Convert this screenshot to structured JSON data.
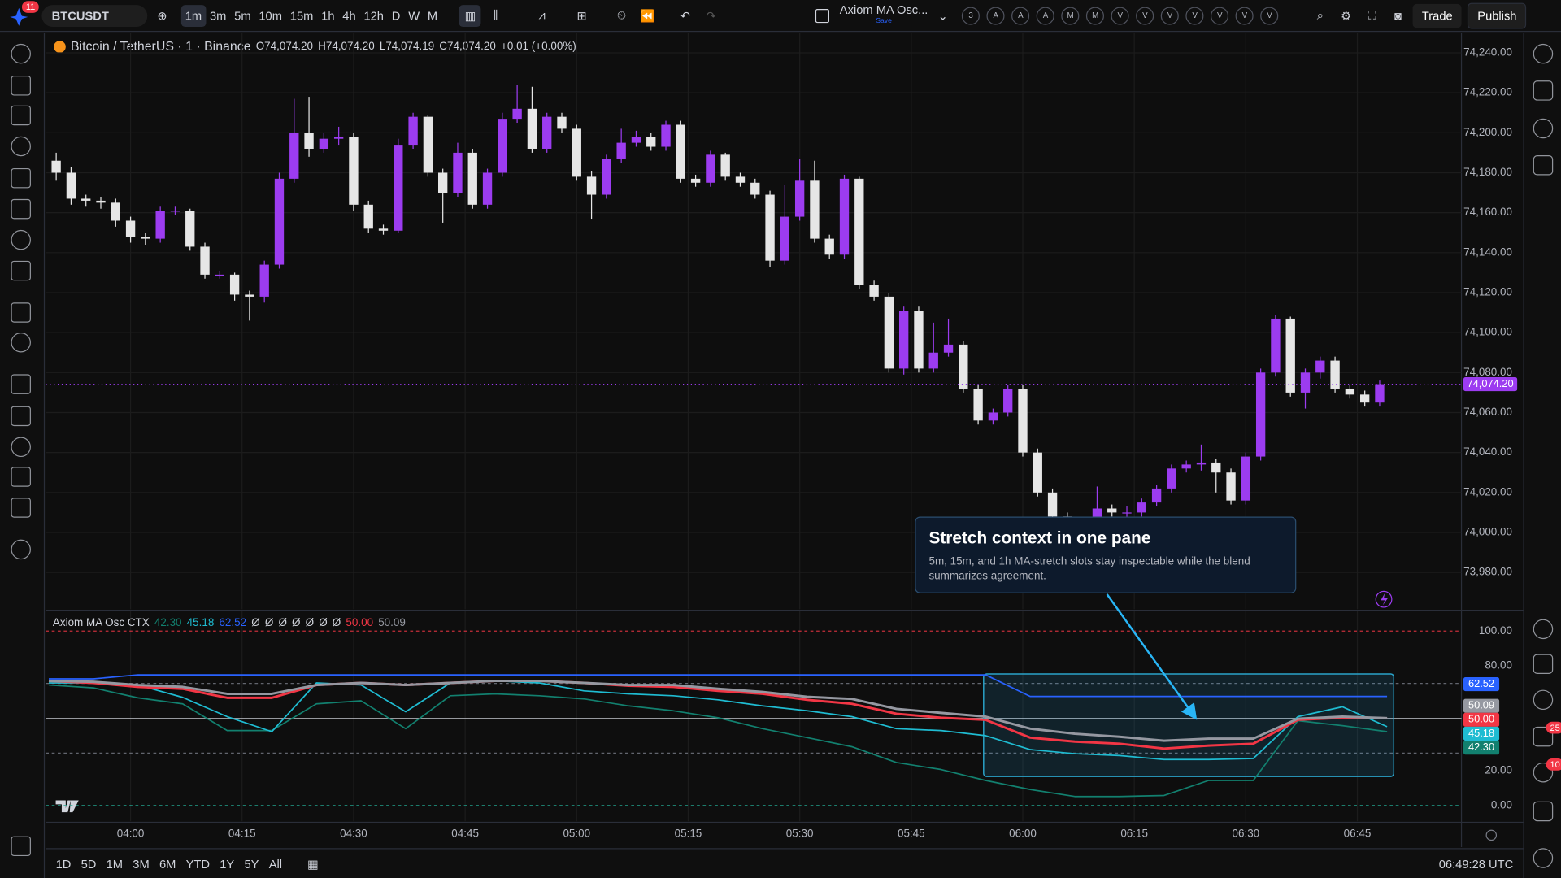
{
  "toolbar": {
    "notifications": "11",
    "symbol": "BTCUSDT",
    "intervals": [
      "1m",
      "3m",
      "5m",
      "10m",
      "15m",
      "1h",
      "4h",
      "12h",
      "D",
      "W",
      "M"
    ],
    "indicator_name": "Axiom MA Osc...",
    "save": "Save",
    "slots": [
      "3",
      "A",
      "A",
      "A",
      "M",
      "M",
      "V",
      "V",
      "V",
      "V",
      "V",
      "V",
      "V"
    ],
    "trade": "Trade",
    "publish": "Publish"
  },
  "legend": {
    "symbol": "Bitcoin / TetherUS · 1 · Binance",
    "open": "O74,074.20",
    "high": "H74,074.20",
    "low": "L74,074.19",
    "close": "C74,074.20",
    "change": "+0.01 (+0.00%)"
  },
  "right_badges": [
    "25",
    "10"
  ],
  "tooltip": {
    "title": "Stretch context in one pane",
    "text": "5m, 15m, and 1h MA-stretch slots stay inspectable while the blend summarizes agreement."
  },
  "range_buttons": [
    "1D",
    "5D",
    "1M",
    "3M",
    "6M",
    "YTD",
    "1Y",
    "5Y",
    "All"
  ],
  "clock": "06:49:28 UTC",
  "chart_data": [
    {
      "type": "candlestick",
      "up_color": "#9c3cf0",
      "down_color": "#e6e6e6",
      "grid": true,
      "xlim": [
        228.6,
        419
      ],
      "xticks": [
        {
          "value": 240,
          "label": "04:00"
        },
        {
          "value": 255,
          "label": "04:15"
        },
        {
          "value": 270,
          "label": "04:30"
        },
        {
          "value": 285,
          "label": "04:45"
        },
        {
          "value": 300,
          "label": "05:00"
        },
        {
          "value": 315,
          "label": "05:15"
        },
        {
          "value": 330,
          "label": "05:30"
        },
        {
          "value": 345,
          "label": "05:45"
        },
        {
          "value": 360,
          "label": "06:00"
        },
        {
          "value": 375,
          "label": "06:15"
        },
        {
          "value": 390,
          "label": "06:30"
        },
        {
          "value": 405,
          "label": "06:45"
        }
      ],
      "ylim": [
        73961.6,
        74250
      ],
      "yticks": [
        {
          "value": 74240,
          "label": "74,240.00"
        },
        {
          "value": 74220,
          "label": "74,220.00"
        },
        {
          "value": 74200,
          "label": "74,200.00"
        },
        {
          "value": 74180,
          "label": "74,180.00"
        },
        {
          "value": 74160,
          "label": "74,160.00"
        },
        {
          "value": 74140,
          "label": "74,140.00"
        },
        {
          "value": 74120,
          "label": "74,120.00"
        },
        {
          "value": 74100,
          "label": "74,100.00"
        },
        {
          "value": 74080,
          "label": "74,080.00"
        },
        {
          "value": 74060,
          "label": "74,060.00"
        },
        {
          "value": 74040,
          "label": "74,040.00"
        },
        {
          "value": 74020,
          "label": "74,020.00"
        },
        {
          "value": 74000,
          "label": "74,000.00"
        },
        {
          "value": 73980,
          "label": "73,980.00"
        }
      ],
      "last_price": {
        "value": 74074.2,
        "label": "74,074.20"
      },
      "x": [
        230,
        232,
        234,
        236,
        238,
        240,
        242,
        244,
        246,
        248,
        250,
        252,
        254,
        256,
        258,
        260,
        262,
        264,
        266,
        268,
        270,
        272,
        274,
        276,
        278,
        280,
        282,
        284,
        286,
        288,
        290,
        292,
        294,
        296,
        298,
        300,
        302,
        304,
        306,
        308,
        310,
        312,
        314,
        316,
        318,
        320,
        322,
        324,
        326,
        328,
        330,
        332,
        334,
        336,
        338,
        340,
        342,
        344,
        346,
        348,
        350,
        352,
        354,
        356,
        358,
        360,
        362,
        364,
        366,
        368,
        370,
        372,
        374,
        376,
        378,
        380,
        382,
        384,
        386,
        388,
        390,
        392,
        394,
        396,
        398,
        400,
        402,
        404,
        406,
        408
      ],
      "open": [
        74186,
        74180,
        74167,
        74166,
        74165,
        74156,
        74148,
        74147,
        74161,
        74161,
        74143,
        74129,
        74129,
        74119,
        74118,
        74134,
        74177,
        74200,
        74192,
        74197,
        74198,
        74164,
        74152,
        74151,
        74194,
        74208,
        74180,
        74170,
        74190,
        74164,
        74180,
        74207,
        74212,
        74192,
        74208,
        74202,
        74178,
        74169,
        74187,
        74195,
        74198,
        74193,
        74204,
        74177,
        74175,
        74189,
        74178,
        74175,
        74169,
        74136,
        74158,
        74176,
        74147,
        74139,
        74177,
        74124,
        74118,
        74082,
        74111,
        74082,
        74090,
        74094,
        74072,
        74056,
        74060,
        74072,
        74040,
        74020,
        74008,
        74005,
        74004,
        74012,
        74010,
        74010,
        74015,
        74022,
        74032,
        74034,
        74035,
        74030,
        74016,
        74038,
        74080,
        74107,
        74070,
        74080,
        74086,
        74072,
        74069,
        74065
      ],
      "high": [
        74190,
        74183,
        74169,
        74168,
        74167,
        74158,
        74150,
        74163,
        74163,
        74162,
        74145,
        74131,
        74130,
        74121,
        74136,
        74180,
        74217,
        74218,
        74200,
        74203,
        74200,
        74166,
        74154,
        74197,
        74210,
        74209,
        74182,
        74195,
        74192,
        74182,
        74210,
        74224,
        74223,
        74210,
        74210,
        74204,
        74181,
        74189,
        74202,
        74201,
        74200,
        74206,
        74206,
        74179,
        74191,
        74190,
        74180,
        74177,
        74171,
        74174,
        74187,
        74186,
        74149,
        74179,
        74178,
        74126,
        74120,
        74113,
        74113,
        74105,
        74107,
        74096,
        74074,
        74062,
        74074,
        74074,
        74042,
        74022,
        74010,
        74007,
        74023,
        74014,
        74013,
        74017,
        74024,
        74034,
        74036,
        74044,
        74037,
        74032,
        74040,
        74082,
        74109,
        74108,
        74082,
        74088,
        74088,
        74074,
        74071,
        74076
      ],
      "low": [
        74176,
        74164,
        74163,
        74162,
        74153,
        74145,
        74144,
        74145,
        74159,
        74141,
        74127,
        74127,
        74116,
        74106,
        74115,
        74132,
        74175,
        74188,
        74190,
        74194,
        74161,
        74150,
        74149,
        74150,
        74192,
        74178,
        74155,
        74168,
        74162,
        74162,
        74178,
        74205,
        74190,
        74190,
        74200,
        74176,
        74157,
        74167,
        74185,
        74193,
        74191,
        74191,
        74175,
        74173,
        74173,
        74176,
        74173,
        74167,
        74133,
        74134,
        74156,
        74145,
        74137,
        74137,
        74122,
        74116,
        74080,
        74079,
        74080,
        74080,
        74088,
        74070,
        74054,
        74054,
        74058,
        74038,
        74018,
        74006,
        74003,
        74002,
        74002,
        74008,
        74007,
        74008,
        74013,
        74020,
        74030,
        74031,
        74020,
        74014,
        74014,
        74036,
        74078,
        74068,
        74062,
        74077,
        74070,
        74067,
        74063,
        74063
      ],
      "close": [
        74180,
        74167,
        74166,
        74165,
        74156,
        74148,
        74147,
        74161,
        74161,
        74143,
        74129,
        74129,
        74119,
        74118,
        74134,
        74177,
        74200,
        74192,
        74197,
        74198,
        74164,
        74152,
        74151,
        74194,
        74208,
        74180,
        74170,
        74190,
        74164,
        74180,
        74207,
        74212,
        74192,
        74208,
        74202,
        74178,
        74169,
        74187,
        74195,
        74198,
        74193,
        74204,
        74177,
        74175,
        74189,
        74178,
        74175,
        74169,
        74136,
        74158,
        74176,
        74147,
        74139,
        74177,
        74124,
        74118,
        74082,
        74111,
        74082,
        74090,
        74094,
        74072,
        74056,
        74060,
        74072,
        74040,
        74020,
        74008,
        74005,
        74004,
        74012,
        74010,
        74010,
        74015,
        74022,
        74032,
        74034,
        74035,
        74030,
        74016,
        74038,
        74080,
        74107,
        74070,
        74080,
        74086,
        74072,
        74069,
        74065,
        74074.2
      ]
    },
    {
      "type": "line",
      "title": "Axiom MA Osc CTX",
      "placeholders": [
        "Ø",
        "Ø",
        "Ø",
        "Ø",
        "Ø",
        "Ø",
        "Ø"
      ],
      "ylim": [
        -9.1,
        111.4
      ],
      "yticks": [
        {
          "value": 100,
          "label": "100.00"
        },
        {
          "value": 80,
          "label": "80.00"
        },
        {
          "value": 20,
          "label": "20.00"
        },
        {
          "value": 0,
          "label": "0.00"
        }
      ],
      "levels": [
        {
          "value": 100,
          "color": "#f23645",
          "style": "dashed"
        },
        {
          "value": 70,
          "color": "#787b86",
          "style": "dashed"
        },
        {
          "value": 50,
          "color": "#d1d4dc",
          "style": "solid"
        },
        {
          "value": 30,
          "color": "#787b86",
          "style": "dashed"
        },
        {
          "value": 0,
          "color": "#22ab94",
          "style": "dashed"
        }
      ],
      "x": [
        229,
        235,
        241,
        247,
        253,
        259,
        265,
        271,
        277,
        283,
        289,
        295,
        301,
        307,
        313,
        319,
        325,
        331,
        337,
        343,
        349,
        355,
        361,
        367,
        373,
        379,
        385,
        391,
        397,
        403,
        409
      ],
      "series": [
        {
          "color": "#12806f",
          "value_label": "42.30",
          "values": [
            69.1,
            67.4,
            61.7,
            58.3,
            42.9,
            42.9,
            58.3,
            60,
            44,
            62.9,
            64,
            62.9,
            61.1,
            57.1,
            54.3,
            50.3,
            44,
            38.9,
            33.7,
            24.6,
            20.6,
            14.3,
            9.1,
            5.1,
            5.1,
            5.7,
            14.3,
            14.3,
            48.6,
            45.7,
            42.3
          ]
        },
        {
          "color": "#1fbcd2",
          "value_label": "45.18",
          "values": [
            70.3,
            70.3,
            69.1,
            62,
            50.9,
            42.3,
            70.3,
            69.1,
            53.7,
            70.3,
            71.4,
            70.3,
            65.7,
            64,
            62.9,
            60.6,
            57.1,
            54.3,
            50.9,
            44,
            42.9,
            40,
            32,
            29.7,
            28.6,
            26.3,
            26.3,
            26.9,
            50.9,
            56.6,
            45.18
          ]
        },
        {
          "color": "#2962ff",
          "value_label": "62.52",
          "values": [
            72.6,
            72.6,
            74.9,
            74.9,
            74.9,
            74.9,
            74.9,
            74.9,
            74.9,
            74.9,
            74.9,
            74.9,
            74.9,
            74.9,
            74.9,
            74.9,
            74.9,
            74.9,
            74.9,
            74.9,
            74.9,
            74.9,
            62.5,
            62.5,
            62.5,
            62.5,
            62.5,
            62.5,
            62.5,
            62.5,
            62.52
          ]
        },
        {
          "color": "#f23645",
          "value_label": "50.00",
          "values": [
            71.4,
            70.3,
            68,
            66.9,
            61.7,
            61.7,
            69.1,
            70.3,
            69.1,
            70.3,
            71.4,
            71.4,
            70.3,
            68.6,
            68,
            65.7,
            64,
            60.6,
            58.3,
            52.6,
            50.3,
            49.1,
            38.9,
            36.6,
            35.4,
            32.6,
            34.3,
            35.4,
            49.1,
            50.3,
            50
          ]
        },
        {
          "color": "#9598a1",
          "value_label": "50.09",
          "values": [
            71.4,
            70.9,
            69.1,
            68,
            64,
            64,
            69.1,
            70.3,
            69.1,
            70.3,
            71.4,
            71.4,
            70.3,
            69.1,
            69.1,
            66.9,
            65.1,
            62.3,
            61.1,
            55.4,
            53.1,
            50.9,
            44,
            41.1,
            39.4,
            37.1,
            38.3,
            38.3,
            49.7,
            50.9,
            50.09
          ]
        }
      ]
    }
  ]
}
